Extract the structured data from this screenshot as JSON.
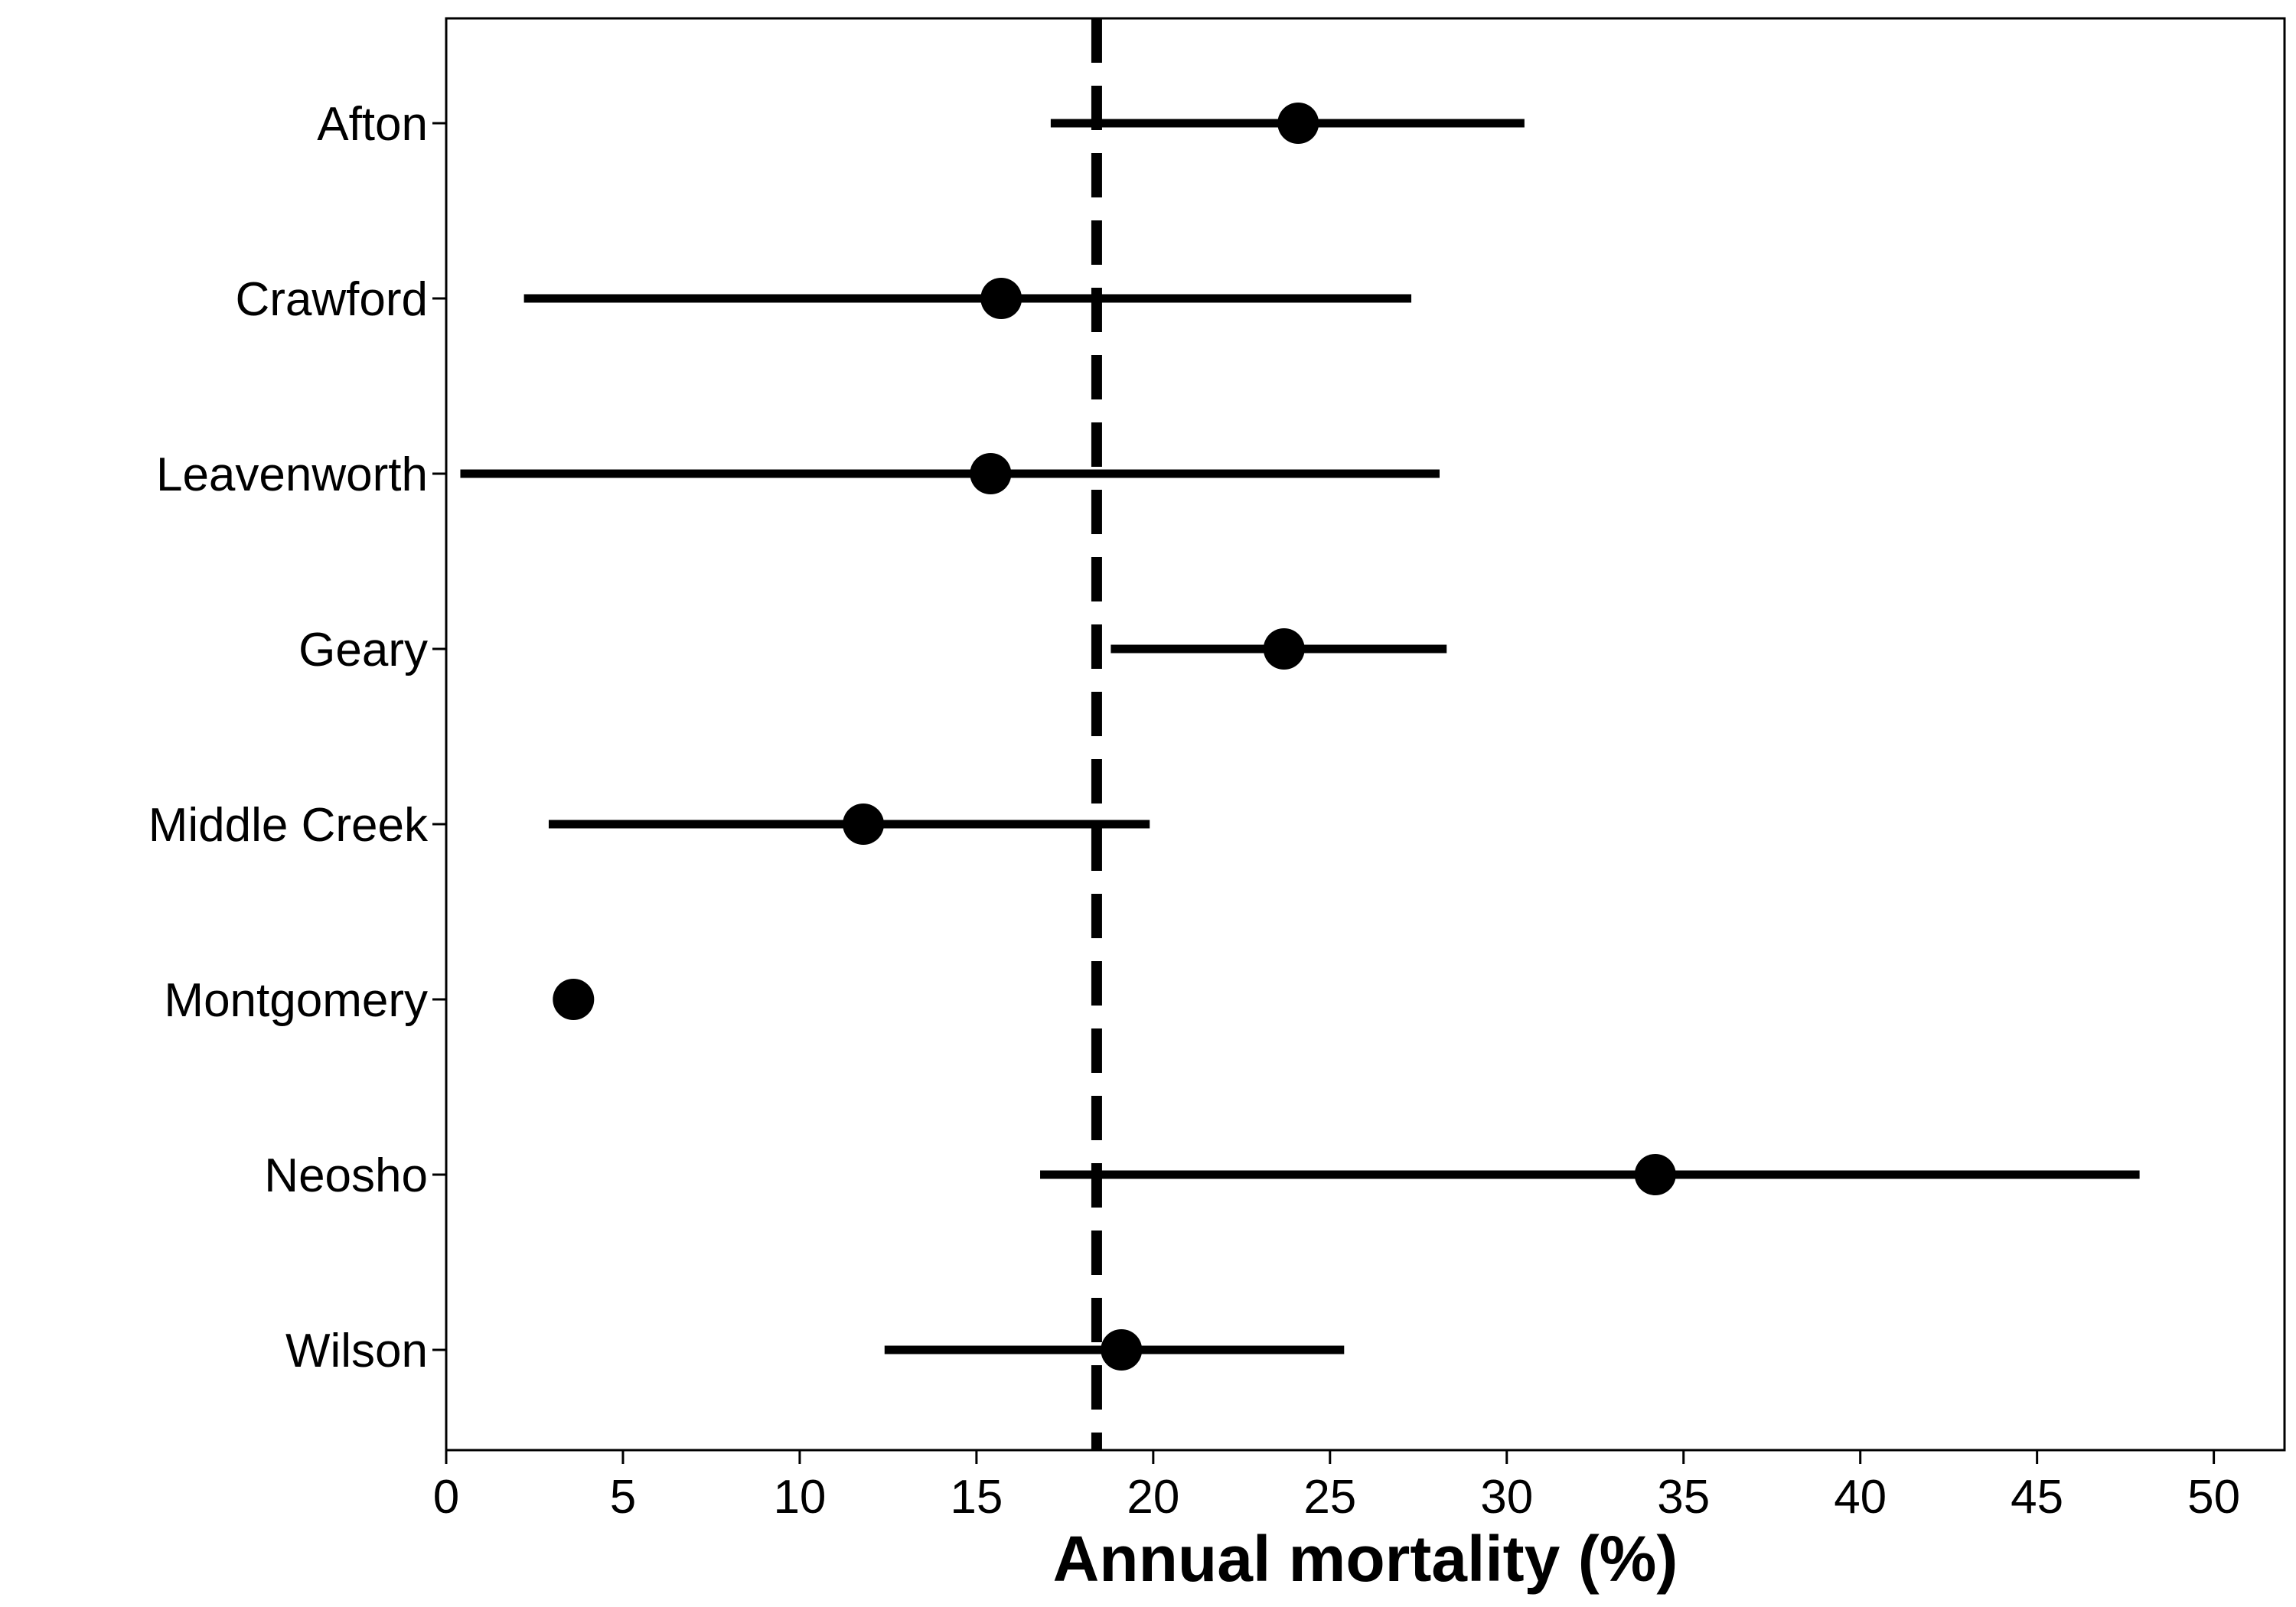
{
  "chart_data": {
    "type": "scatter",
    "subtype": "dot-and-whisker",
    "title": "",
    "xlabel": "Annual mortality (%)",
    "ylabel": "",
    "xlim": [
      0,
      52
    ],
    "xticks": [
      0,
      5,
      10,
      15,
      20,
      25,
      30,
      35,
      40,
      45,
      50
    ],
    "grid": false,
    "legend": "none",
    "reference_line": {
      "x": 18.4,
      "style": "dashed"
    },
    "categories": [
      "Afton",
      "Crawford",
      "Leavenworth",
      "Geary",
      "Middle Creek",
      "Montgomery",
      "Neosho",
      "Wilson"
    ],
    "points": [
      {
        "label": "Afton",
        "estimate": 24.1,
        "lower": 17.1,
        "upper": 30.5
      },
      {
        "label": "Crawford",
        "estimate": 15.7,
        "lower": 2.2,
        "upper": 27.3
      },
      {
        "label": "Leavenworth",
        "estimate": 15.4,
        "lower": 0.4,
        "upper": 28.1
      },
      {
        "label": "Geary",
        "estimate": 23.7,
        "lower": 18.8,
        "upper": 28.3
      },
      {
        "label": "Middle Creek",
        "estimate": 11.8,
        "lower": 2.9,
        "upper": 19.9
      },
      {
        "label": "Montgomery",
        "estimate": 3.6,
        "lower": null,
        "upper": null
      },
      {
        "label": "Neosho",
        "estimate": 34.2,
        "lower": 16.8,
        "upper": 47.9
      },
      {
        "label": "Wilson",
        "estimate": 19.1,
        "lower": 12.4,
        "upper": 25.4
      }
    ],
    "colors": {
      "marks": "#000000",
      "background": "#ffffff"
    }
  }
}
